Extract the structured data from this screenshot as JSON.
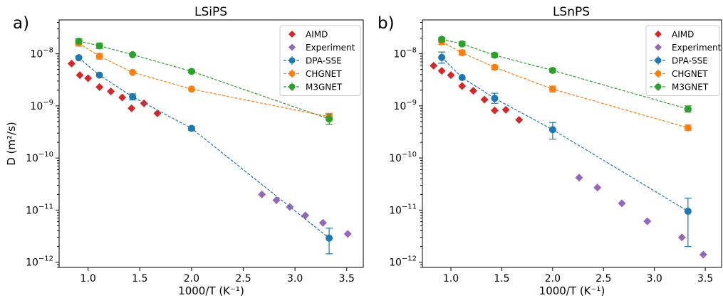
{
  "chart_data": [
    {
      "panel_label": "a)",
      "title": "LSiPS",
      "type": "scatter",
      "xlabel": "1000/T (K⁻¹)",
      "ylabel": "D (m²/s)",
      "ylabel_display": "D (m²/s)",
      "xlim": [
        0.72,
        3.66
      ],
      "ylim_log10": [
        -12.1,
        -7.35
      ],
      "yscale": "log",
      "xticks": [
        1.0,
        1.5,
        2.0,
        2.5,
        3.0,
        3.5
      ],
      "xtick_labels": [
        "1.0",
        "1.5",
        "2.0",
        "2.5",
        "3.0",
        "3.5"
      ],
      "yticks_exp": [
        -12,
        -11,
        -10,
        -9,
        -8
      ],
      "ytick_base": "10",
      "ytick_exponents": [
        "−12",
        "−11",
        "−10",
        "−9",
        "−8"
      ],
      "legend_position": "top-right",
      "series": [
        {
          "name": "AIMD",
          "marker": "diamond",
          "color": "#d62728",
          "points": [
            [
              0.84,
              6.5e-09
            ],
            [
              0.92,
              3.9e-09
            ],
            [
              1.0,
              3.4e-09
            ],
            [
              1.11,
              2.3e-09
            ],
            [
              1.22,
              1.9e-09
            ],
            [
              1.33,
              1.45e-09
            ],
            [
              1.42,
              9e-10
            ],
            [
              1.54,
              1.12e-09
            ],
            [
              1.67,
              7.2e-10
            ]
          ]
        },
        {
          "name": "Experiment",
          "marker": "diamond",
          "color": "#9467bd",
          "points": [
            [
              2.68,
              2e-11
            ],
            [
              2.82,
              1.55e-11
            ],
            [
              2.95,
              1.15e-11
            ],
            [
              3.1,
              7.9e-12
            ],
            [
              3.27,
              5.7e-12
            ],
            [
              3.51,
              3.5e-12
            ]
          ]
        },
        {
          "name": "DPA-SSE",
          "marker": "circle",
          "color": "#1f77b4",
          "line": "dashed",
          "points": [
            [
              0.91,
              8.4e-09
            ],
            [
              1.11,
              3.9e-09
            ],
            [
              1.43,
              1.5e-09
            ],
            [
              2.0,
              3.7e-10
            ],
            [
              3.33,
              2.9e-12
            ]
          ],
          "err_low": [
            null,
            null,
            1.3e-09,
            3.4e-10,
            1.45e-12
          ],
          "err_high": [
            null,
            null,
            1.7e-09,
            4e-10,
            4.5e-12
          ]
        },
        {
          "name": "CHGNET",
          "marker": "circle",
          "color": "#ff7f0e",
          "line": "dashed",
          "points": [
            [
              0.91,
              1.6e-08
            ],
            [
              1.11,
              9e-09
            ],
            [
              1.43,
              4.4e-09
            ],
            [
              2.0,
              2.1e-09
            ],
            [
              3.33,
              6.2e-10
            ]
          ],
          "err_low": [
            1.4e-08,
            7.9e-09,
            null,
            null,
            5.4e-10
          ],
          "err_high": [
            1.8e-08,
            1e-08,
            null,
            null,
            7.2e-10
          ]
        },
        {
          "name": "M3GNET",
          "marker": "circle",
          "color": "#2ca02c",
          "line": "dashed",
          "points": [
            [
              0.91,
              1.75e-08
            ],
            [
              1.11,
              1.42e-08
            ],
            [
              1.43,
              9.6e-09
            ],
            [
              2.0,
              4.6e-09
            ],
            [
              3.33,
              5.6e-10
            ]
          ],
          "err_low": [
            1.55e-08,
            1.26e-08,
            null,
            4.3e-09,
            4.4e-10
          ],
          "err_high": [
            1.95e-08,
            1.6e-08,
            null,
            4.9e-09,
            6.8e-10
          ]
        }
      ]
    },
    {
      "panel_label": "b)",
      "title": "LSnPS",
      "type": "scatter",
      "xlabel": "1000/T (K⁻¹)",
      "ylabel": "",
      "xlim": [
        0.72,
        3.66
      ],
      "ylim_log10": [
        -12.1,
        -7.35
      ],
      "yscale": "log",
      "xticks": [
        1.0,
        1.5,
        2.0,
        2.5,
        3.0,
        3.5
      ],
      "xtick_labels": [
        "1.0",
        "1.5",
        "2.0",
        "2.5",
        "3.0",
        "3.5"
      ],
      "yticks_exp": [
        -12,
        -11,
        -10,
        -9,
        -8
      ],
      "ytick_base": "10",
      "ytick_exponents": [
        "−12",
        "−11",
        "−10",
        "−9",
        "−8"
      ],
      "legend_position": "top-right",
      "series": [
        {
          "name": "AIMD",
          "marker": "diamond",
          "color": "#d62728",
          "points": [
            [
              0.83,
              5.9e-09
            ],
            [
              0.91,
              4.7e-09
            ],
            [
              1.0,
              3.9e-09
            ],
            [
              1.11,
              2.4e-09
            ],
            [
              1.22,
              1.95e-09
            ],
            [
              1.33,
              1.32e-09
            ],
            [
              1.43,
              8.2e-10
            ],
            [
              1.54,
              8.4e-10
            ],
            [
              1.67,
              5.4e-10
            ]
          ]
        },
        {
          "name": "Experiment",
          "marker": "diamond",
          "color": "#9467bd",
          "points": [
            [
              2.26,
              4.2e-11
            ],
            [
              2.44,
              2.7e-11
            ],
            [
              2.68,
              1.35e-11
            ],
            [
              2.93,
              6.1e-12
            ],
            [
              3.27,
              3e-12
            ],
            [
              3.48,
              1.4e-12
            ]
          ]
        },
        {
          "name": "DPA-SSE",
          "marker": "circle",
          "color": "#1f77b4",
          "line": "dashed",
          "points": [
            [
              0.91,
              8.5e-09
            ],
            [
              1.11,
              3.5e-09
            ],
            [
              1.43,
              1.4e-09
            ],
            [
              2.0,
              3.5e-10
            ],
            [
              3.33,
              9.5e-12
            ]
          ],
          "err_low": [
            6.6e-09,
            null,
            1.12e-09,
            2.3e-10,
            2e-12
          ],
          "err_high": [
            1.08e-08,
            null,
            1.75e-09,
            4.8e-10,
            1.7e-11
          ]
        },
        {
          "name": "CHGNET",
          "marker": "circle",
          "color": "#ff7f0e",
          "line": "dashed",
          "points": [
            [
              0.91,
              1.7e-08
            ],
            [
              1.11,
              1.05e-08
            ],
            [
              1.43,
              5.5e-09
            ],
            [
              2.0,
              2.1e-09
            ],
            [
              3.33,
              3.8e-10
            ]
          ],
          "err_low": [
            1.5e-08,
            9.5e-09,
            5e-09,
            1.85e-09,
            3.4e-10
          ],
          "err_high": [
            1.9e-08,
            1.18e-08,
            6e-09,
            2.4e-09,
            4.3e-10
          ]
        },
        {
          "name": "M3GNET",
          "marker": "circle",
          "color": "#2ca02c",
          "line": "dashed",
          "points": [
            [
              0.91,
              1.9e-08
            ],
            [
              1.11,
              1.55e-08
            ],
            [
              1.43,
              9.4e-09
            ],
            [
              2.0,
              4.8e-09
            ],
            [
              3.33,
              8.7e-10
            ]
          ],
          "err_low": [
            1.75e-08,
            1.42e-08,
            8.6e-09,
            4.4e-09,
            7.6e-10
          ],
          "err_high": [
            2.05e-08,
            1.7e-08,
            1.03e-08,
            5.2e-09,
            1e-09
          ]
        }
      ]
    }
  ]
}
